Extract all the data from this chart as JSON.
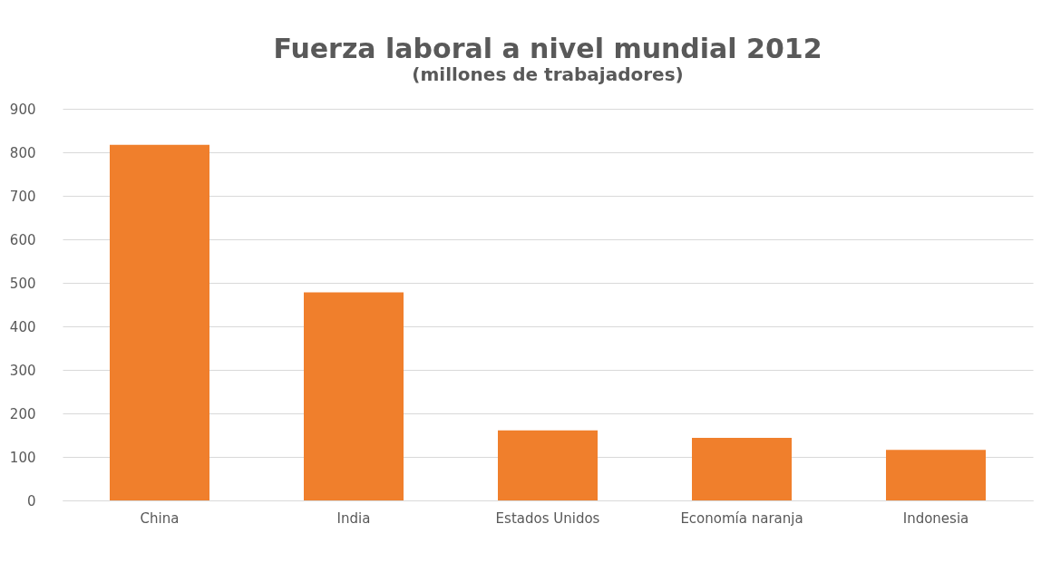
{
  "chart_data": {
    "type": "bar",
    "title": "Fuerza laboral a nivel mundial 2012",
    "subtitle": "(millones de trabajadores)",
    "categories": [
      "China",
      "India",
      "Estados Unidos",
      "Economía naranja",
      "Indonesia"
    ],
    "values": [
      817,
      478,
      161,
      144,
      116
    ],
    "color": "#f07f2c",
    "ylim": [
      0,
      900
    ],
    "yticks": [
      0,
      100,
      200,
      300,
      400,
      500,
      600,
      700,
      800,
      900
    ],
    "grid": "y"
  }
}
